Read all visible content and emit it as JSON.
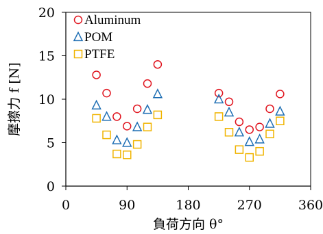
{
  "chart_data": {
    "type": "scatter",
    "xlabel": "負荷方向 θ°",
    "ylabel": "摩擦力 f [N]",
    "xlim": [
      0,
      360
    ],
    "ylim": [
      0,
      20
    ],
    "x_ticks": [
      0,
      90,
      180,
      270,
      360
    ],
    "y_ticks": [
      0,
      5,
      10,
      15,
      20
    ],
    "grid": false,
    "legend_position": "top-left",
    "series": [
      {
        "name": "Aluminum",
        "marker": "circle",
        "color": "#e0141e",
        "x": [
          45,
          60,
          75,
          90,
          105,
          120,
          135,
          225,
          240,
          255,
          270,
          285,
          300,
          315
        ],
        "y": [
          12.8,
          10.7,
          8.0,
          6.9,
          8.9,
          11.8,
          14.0,
          10.7,
          9.7,
          7.4,
          6.5,
          6.8,
          8.9,
          10.6
        ]
      },
      {
        "name": "POM",
        "marker": "triangle",
        "color": "#1f6fb4",
        "x": [
          45,
          60,
          75,
          90,
          105,
          120,
          135,
          225,
          240,
          255,
          270,
          285,
          300,
          315
        ],
        "y": [
          9.3,
          8.0,
          5.3,
          5.0,
          6.8,
          8.8,
          10.6,
          10.0,
          8.5,
          6.2,
          5.1,
          5.4,
          7.2,
          8.6
        ]
      },
      {
        "name": "PTFE",
        "marker": "square",
        "color": "#f0b400",
        "x": [
          45,
          60,
          75,
          90,
          105,
          120,
          135,
          225,
          240,
          255,
          270,
          285,
          300,
          315
        ],
        "y": [
          7.8,
          5.9,
          3.7,
          3.6,
          4.8,
          6.8,
          8.2,
          8.0,
          6.2,
          4.2,
          3.3,
          4.0,
          6.0,
          7.5
        ]
      }
    ]
  }
}
